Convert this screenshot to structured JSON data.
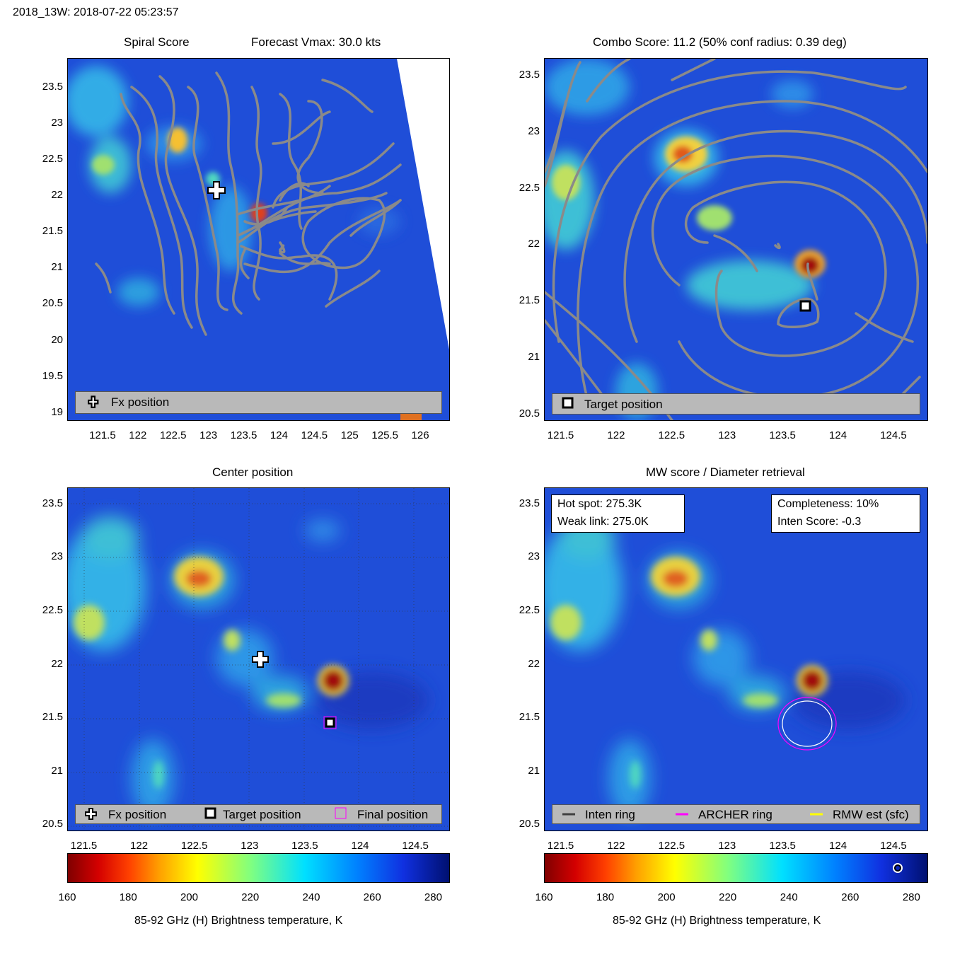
{
  "figure": {
    "suptitle": "2018_13W: 2018-07-22 05:23:57"
  },
  "colors": {
    "contour": "#8a8a8a",
    "legend_bg": "#b9b9b9",
    "inten_ring": "#404040",
    "archer_ring": "#ff00ff",
    "rmw_est": "#ffff00"
  },
  "panels": {
    "spiral": {
      "title_left": "Spiral Score",
      "title_right": "Forecast Vmax: 30.0 kts",
      "legend": {
        "fx": "Fx position"
      }
    },
    "combo": {
      "title": "Combo Score: 11.2  (50% conf radius: 0.39 deg)",
      "legend": {
        "target": "Target position"
      }
    },
    "center": {
      "title": "Center position",
      "legend": {
        "fx": "Fx position",
        "target": "Target position",
        "final": "Final position"
      }
    },
    "mw": {
      "title": "MW score / Diameter retrieval",
      "hot_spot": "Hot spot: 275.3K",
      "weak_link": "Weak link: 275.0K",
      "completeness": "Completeness: 10%",
      "inten_score": "Inten Score: -0.3",
      "legend": {
        "inten": "Inten ring",
        "archer": "ARCHER ring",
        "rmw": "RMW est (sfc)"
      }
    }
  },
  "colorbar": {
    "label": "85-92 GHz (H) Brightness temperature, K",
    "ticks": [
      "160",
      "180",
      "200",
      "220",
      "240",
      "260",
      "280"
    ]
  },
  "chart_data": [
    {
      "type": "heatmap",
      "name": "spiral",
      "title": "Spiral Score",
      "xlim": [
        121.0,
        126.4
      ],
      "ylim": [
        18.9,
        23.9
      ],
      "x_ticks": [
        "121.5",
        "122",
        "122.5",
        "123",
        "123.5",
        "124",
        "124.5",
        "125",
        "125.5",
        "126"
      ],
      "y_ticks": [
        "23.5",
        "23",
        "22.5",
        "22",
        "21.5",
        "21",
        "20.5",
        "20",
        "19.5",
        "19"
      ],
      "fx_position": [
        123.1,
        22.05
      ],
      "hot_spots": [
        {
          "x": 122.65,
          "y": 22.85,
          "tb": 175
        },
        {
          "x": 123.75,
          "y": 21.85,
          "tb": 165
        }
      ]
    },
    {
      "type": "heatmap",
      "name": "combo",
      "title": "Combo Score: 11.2  (50% conf radius: 0.39 deg)",
      "xlim": [
        121.35,
        124.8
      ],
      "ylim": [
        20.45,
        23.65
      ],
      "x_ticks": [
        "121.5",
        "122",
        "122.5",
        "123",
        "123.5",
        "124",
        "124.5"
      ],
      "y_ticks": [
        "23.5",
        "23",
        "22.5",
        "22",
        "21.5",
        "21",
        "20.5"
      ],
      "target_position": [
        123.73,
        21.45
      ],
      "hot_spots": [
        {
          "x": 122.65,
          "y": 22.8,
          "tb": 180
        },
        {
          "x": 123.75,
          "y": 21.8,
          "tb": 165
        }
      ]
    },
    {
      "type": "heatmap",
      "name": "center",
      "title": "Center position",
      "xlim": [
        121.35,
        124.8
      ],
      "ylim": [
        20.45,
        23.65
      ],
      "x_ticks": [
        "121.5",
        "122",
        "122.5",
        "123",
        "123.5",
        "124",
        "124.5"
      ],
      "y_ticks": [
        "23.5",
        "23",
        "22.5",
        "22",
        "21.5",
        "21",
        "20.5"
      ],
      "fx_position": [
        123.1,
        22.05
      ],
      "target_position": [
        123.73,
        21.45
      ],
      "final_position": [
        123.73,
        21.45
      ]
    },
    {
      "type": "heatmap",
      "name": "mw",
      "title": "MW score / Diameter retrieval",
      "xlim": [
        121.35,
        124.8
      ],
      "ylim": [
        20.45,
        23.65
      ],
      "x_ticks": [
        "121.5",
        "122",
        "122.5",
        "123",
        "123.5",
        "124",
        "124.5"
      ],
      "y_ticks": [
        "23.5",
        "23",
        "22.5",
        "22",
        "21.5",
        "21",
        "20.5"
      ],
      "ring_center": [
        123.73,
        21.45
      ]
    }
  ]
}
